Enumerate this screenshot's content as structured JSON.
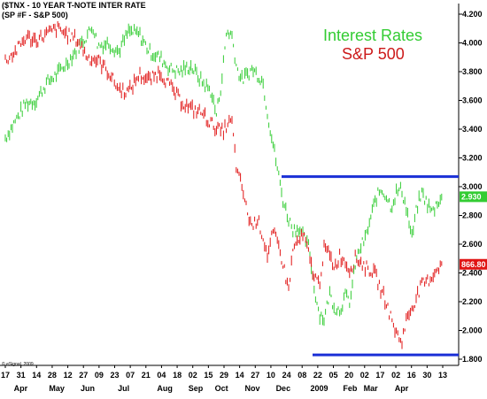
{
  "header": {
    "line1": "($TNX - 10 YEAR T-NOTE INTER RATE",
    "line2": "(SP #F - S&P 500)"
  },
  "legend": {
    "interest": "Interest Rates",
    "sp": "S&P 500"
  },
  "colors": {
    "interest": "#33cc33",
    "sp": "#e01414",
    "level": "#1a2fd6",
    "legend_sp": "#cc1a1a",
    "legend_interest": "#33cc33"
  },
  "copyright": "© eSignal, 2009",
  "chart_data": {
    "type": "line",
    "title": "",
    "ylim": [
      1.8,
      4.2
    ],
    "yticks": [
      "4.200",
      "4.000",
      "3.800",
      "3.600",
      "3.400",
      "3.200",
      "3.000",
      "2.800",
      "2.600",
      "2.400",
      "2.200",
      "2.000",
      "1.800"
    ],
    "xlabels_days": [
      "17",
      "31",
      "14",
      "28",
      "12",
      "27",
      "09",
      "23",
      "07",
      "21",
      "04",
      "18",
      "02",
      "15",
      "29",
      "14",
      "27",
      "10",
      "24",
      "08",
      "22",
      "05",
      "20",
      "02",
      "17",
      "02",
      "16",
      "30",
      "13"
    ],
    "xlabels_months": [
      {
        "label": "Apr",
        "at": 3
      },
      {
        "label": "May",
        "at": 10
      },
      {
        "label": "Jun",
        "at": 16
      },
      {
        "label": "Jul",
        "at": 23
      },
      {
        "label": "Aug",
        "at": 31
      },
      {
        "label": "Sep",
        "at": 37
      },
      {
        "label": "Oct",
        "at": 42
      },
      {
        "label": "Nov",
        "at": 48
      },
      {
        "label": "Dec",
        "at": 54
      },
      {
        "label": "2009",
        "at": 61
      },
      {
        "label": "Feb",
        "at": 67
      },
      {
        "label": "Mar",
        "at": 71
      },
      {
        "label": "Apr",
        "at": 77
      }
    ],
    "levels": [
      3.07,
      1.83
    ],
    "last_values": {
      "interest": "2.930",
      "sp": "866.80"
    },
    "series": [
      {
        "key": "interest",
        "points": [
          [
            0,
            3.34
          ],
          [
            2,
            3.46
          ],
          [
            4,
            3.58
          ],
          [
            6,
            3.6
          ],
          [
            8,
            3.72
          ],
          [
            10,
            3.78
          ],
          [
            12,
            3.86
          ],
          [
            14,
            3.96
          ],
          [
            16,
            4.06
          ],
          [
            17,
            4.12
          ],
          [
            18,
            3.98
          ],
          [
            20,
            4.0
          ],
          [
            22,
            3.94
          ],
          [
            24,
            4.08
          ],
          [
            26,
            4.06
          ],
          [
            28,
            3.94
          ],
          [
            30,
            3.9
          ],
          [
            32,
            3.82
          ],
          [
            34,
            3.8
          ],
          [
            36,
            3.84
          ],
          [
            38,
            3.74
          ],
          [
            40,
            3.66
          ],
          [
            41,
            3.5
          ],
          [
            42,
            3.72
          ],
          [
            43,
            4.08
          ],
          [
            44,
            4.06
          ],
          [
            45,
            3.82
          ],
          [
            46,
            3.74
          ],
          [
            48,
            3.82
          ],
          [
            50,
            3.74
          ],
          [
            51,
            3.5
          ],
          [
            52,
            3.3
          ],
          [
            53,
            3.1
          ],
          [
            54,
            2.9
          ],
          [
            55,
            2.78
          ],
          [
            56,
            2.7
          ],
          [
            57,
            2.72
          ],
          [
            58,
            2.64
          ],
          [
            59,
            2.58
          ],
          [
            60,
            2.3
          ],
          [
            61,
            2.12
          ],
          [
            62,
            2.08
          ],
          [
            63,
            2.26
          ],
          [
            64,
            2.16
          ],
          [
            65,
            2.14
          ],
          [
            66,
            2.24
          ],
          [
            67,
            2.2
          ],
          [
            68,
            2.46
          ],
          [
            69,
            2.58
          ],
          [
            70,
            2.64
          ],
          [
            71,
            2.78
          ],
          [
            72,
            2.92
          ],
          [
            73,
            2.98
          ],
          [
            74,
            2.94
          ],
          [
            75,
            2.86
          ],
          [
            76,
            2.96
          ],
          [
            77,
            2.98
          ],
          [
            78,
            2.84
          ],
          [
            79,
            2.64
          ],
          [
            80,
            2.86
          ],
          [
            81,
            2.96
          ],
          [
            82,
            2.88
          ],
          [
            83,
            2.82
          ],
          [
            84,
            2.9
          ],
          [
            85,
            2.93
          ]
        ]
      },
      {
        "key": "sp",
        "points": [
          [
            0,
            3.88
          ],
          [
            2,
            3.94
          ],
          [
            4,
            4.04
          ],
          [
            6,
            4.02
          ],
          [
            8,
            4.06
          ],
          [
            10,
            4.1
          ],
          [
            12,
            4.06
          ],
          [
            14,
            4.02
          ],
          [
            16,
            3.9
          ],
          [
            18,
            3.88
          ],
          [
            20,
            3.8
          ],
          [
            22,
            3.68
          ],
          [
            24,
            3.66
          ],
          [
            26,
            3.78
          ],
          [
            28,
            3.74
          ],
          [
            30,
            3.8
          ],
          [
            32,
            3.7
          ],
          [
            34,
            3.6
          ],
          [
            36,
            3.54
          ],
          [
            38,
            3.52
          ],
          [
            40,
            3.44
          ],
          [
            42,
            3.38
          ],
          [
            44,
            3.46
          ],
          [
            45,
            3.1
          ],
          [
            46,
            3.0
          ],
          [
            47,
            2.82
          ],
          [
            48,
            2.72
          ],
          [
            49,
            2.78
          ],
          [
            50,
            2.66
          ],
          [
            51,
            2.52
          ],
          [
            52,
            2.68
          ],
          [
            53,
            2.6
          ],
          [
            54,
            2.46
          ],
          [
            55,
            2.28
          ],
          [
            56,
            2.58
          ],
          [
            57,
            2.62
          ],
          [
            58,
            2.66
          ],
          [
            59,
            2.52
          ],
          [
            60,
            2.38
          ],
          [
            61,
            2.32
          ],
          [
            62,
            2.58
          ],
          [
            63,
            2.52
          ],
          [
            64,
            2.44
          ],
          [
            65,
            2.52
          ],
          [
            66,
            2.48
          ],
          [
            67,
            2.42
          ],
          [
            68,
            2.5
          ],
          [
            69,
            2.48
          ],
          [
            70,
            2.44
          ],
          [
            71,
            2.42
          ],
          [
            72,
            2.38
          ],
          [
            73,
            2.28
          ],
          [
            74,
            2.2
          ],
          [
            75,
            2.08
          ],
          [
            76,
            1.98
          ],
          [
            77,
            1.92
          ],
          [
            78,
            2.08
          ],
          [
            79,
            2.16
          ],
          [
            80,
            2.24
          ],
          [
            81,
            2.32
          ],
          [
            82,
            2.34
          ],
          [
            83,
            2.38
          ],
          [
            84,
            2.44
          ],
          [
            85,
            2.46
          ]
        ]
      }
    ]
  }
}
